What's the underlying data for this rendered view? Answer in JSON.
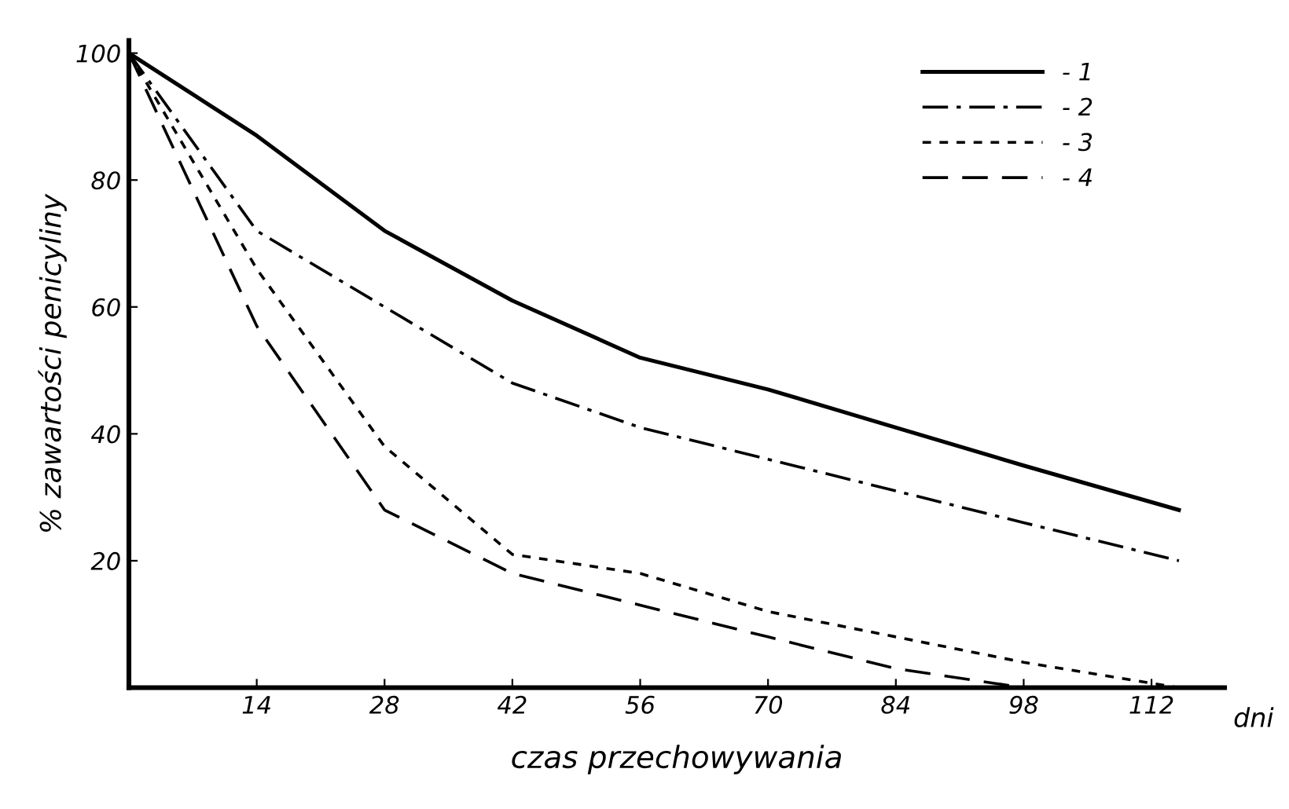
{
  "chart_data": {
    "type": "line",
    "xlabel": "czas przechowywania",
    "ylabel": "% zawartości penicyliny",
    "annotations": [
      "dni"
    ],
    "xlim": [
      0,
      120
    ],
    "xticks": [
      14,
      28,
      42,
      56,
      70,
      84,
      98,
      112
    ],
    "ylim": [
      0,
      102
    ],
    "yticks": [
      20,
      40,
      60,
      80,
      100
    ],
    "grid": false,
    "legend": "top right",
    "marker": "none",
    "series": [
      {
        "name": "- 1",
        "color": "#000000",
        "line_style": "solid",
        "x": [
          0,
          14,
          28,
          42,
          56,
          70,
          84,
          98,
          115
        ],
        "values": [
          100,
          87,
          72,
          61,
          52,
          47,
          41,
          35,
          28
        ]
      },
      {
        "name": "- 2",
        "color": "#000000",
        "line_style": "dashdot",
        "x": [
          0,
          14,
          28,
          42,
          56,
          70,
          84,
          98,
          115
        ],
        "values": [
          100,
          72,
          60,
          48,
          41,
          36,
          31,
          26,
          20
        ]
      },
      {
        "name": "- 3",
        "color": "#000000",
        "line_style": "dotted",
        "x": [
          0,
          14,
          28,
          42,
          56,
          70,
          84,
          98,
          115
        ],
        "values": [
          100,
          66,
          38,
          21,
          18,
          12,
          8,
          4,
          0
        ]
      },
      {
        "name": "- 4",
        "color": "#000000",
        "line_style": "dashed",
        "x": [
          0,
          14,
          28,
          42,
          56,
          70,
          84,
          98
        ],
        "values": [
          100,
          57,
          28,
          18,
          13,
          8,
          3,
          0
        ]
      }
    ]
  }
}
